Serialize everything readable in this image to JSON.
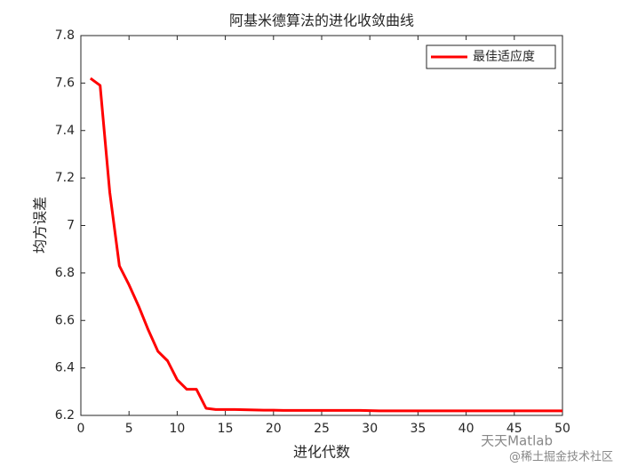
{
  "chart_data": {
    "type": "line",
    "title": "阿基米德算法的进化收敛曲线",
    "xlabel": "进化代数",
    "ylabel": "均方误差",
    "x": [
      1,
      2,
      3,
      4,
      5,
      6,
      7,
      8,
      9,
      10,
      11,
      12,
      13,
      14,
      15,
      16,
      17,
      18,
      19,
      20,
      21,
      22,
      23,
      24,
      25,
      26,
      27,
      28,
      29,
      30,
      31,
      32,
      33,
      34,
      35,
      36,
      37,
      38,
      39,
      40,
      41,
      42,
      43,
      44,
      45,
      46,
      47,
      48,
      49,
      50
    ],
    "series": [
      {
        "name": "最佳适应度",
        "color": "#ff0000",
        "values": [
          7.62,
          7.59,
          7.14,
          6.83,
          6.75,
          6.66,
          6.56,
          6.47,
          6.43,
          6.35,
          6.31,
          6.31,
          6.23,
          6.225,
          6.225,
          6.225,
          6.224,
          6.223,
          6.222,
          6.222,
          6.221,
          6.221,
          6.221,
          6.221,
          6.221,
          6.221,
          6.221,
          6.221,
          6.221,
          6.22,
          6.219,
          6.219,
          6.219,
          6.219,
          6.219,
          6.219,
          6.219,
          6.219,
          6.219,
          6.219,
          6.219,
          6.219,
          6.219,
          6.219,
          6.219,
          6.219,
          6.219,
          6.219,
          6.219,
          6.219
        ]
      }
    ],
    "xlim": [
      0,
      50
    ],
    "xticks": [
      0,
      5,
      10,
      15,
      20,
      25,
      30,
      35,
      40,
      45,
      50
    ],
    "ylim": [
      6.2,
      7.8
    ],
    "yticks": [
      6.2,
      6.4,
      6.6,
      6.8,
      7,
      7.2,
      7.4,
      7.6,
      7.8
    ],
    "legend": "northeast",
    "watermark": [
      "天天Matlab",
      "@稀土掘金技术社区"
    ]
  }
}
